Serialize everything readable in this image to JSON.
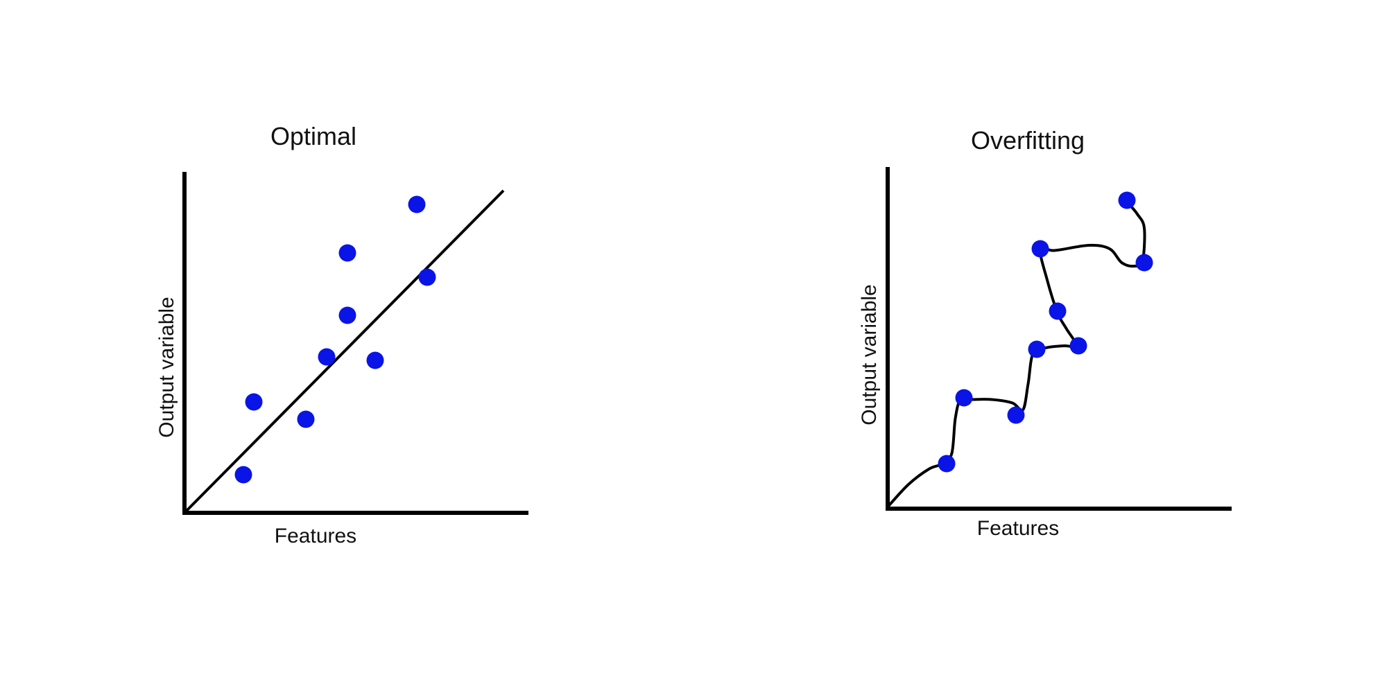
{
  "colors": {
    "point": "#0a14e6",
    "line": "#000000",
    "background": "#ffffff"
  },
  "panels": [
    {
      "id": "optimal",
      "title": "Optimal",
      "xlabel": "Features",
      "ylabel": "Output variable",
      "fit": "linear",
      "xlim": [
        0,
        10
      ],
      "ylim": [
        0,
        10
      ],
      "points": [
        {
          "x": 1.7,
          "y": 1.1
        },
        {
          "x": 2.0,
          "y": 3.2
        },
        {
          "x": 3.5,
          "y": 2.7
        },
        {
          "x": 4.1,
          "y": 4.5
        },
        {
          "x": 4.7,
          "y": 5.7
        },
        {
          "x": 4.7,
          "y": 7.5
        },
        {
          "x": 5.5,
          "y": 4.4
        },
        {
          "x": 6.7,
          "y": 8.9
        },
        {
          "x": 7.0,
          "y": 6.8
        }
      ],
      "fit_line": [
        {
          "x": 0,
          "y": 0
        },
        {
          "x": 9.2,
          "y": 9.3
        }
      ]
    },
    {
      "id": "overfitting",
      "title": "Overfitting",
      "xlabel": "Features",
      "ylabel": "Output variable",
      "fit": "wiggly",
      "xlim": [
        0,
        10
      ],
      "ylim": [
        0,
        10
      ],
      "points": [
        {
          "x": 1.7,
          "y": 1.3
        },
        {
          "x": 2.2,
          "y": 3.2
        },
        {
          "x": 3.7,
          "y": 2.7
        },
        {
          "x": 4.3,
          "y": 4.6
        },
        {
          "x": 5.5,
          "y": 4.7
        },
        {
          "x": 4.9,
          "y": 5.7
        },
        {
          "x": 4.4,
          "y": 7.5
        },
        {
          "x": 6.9,
          "y": 8.9
        },
        {
          "x": 7.4,
          "y": 7.1
        }
      ],
      "fit_curve": [
        {
          "x": 0.0,
          "y": 0.05
        },
        {
          "x": 0.6,
          "y": 0.7
        },
        {
          "x": 1.2,
          "y": 1.15
        },
        {
          "x": 1.6,
          "y": 1.3
        },
        {
          "x": 1.85,
          "y": 1.6
        },
        {
          "x": 1.95,
          "y": 2.6
        },
        {
          "x": 2.1,
          "y": 3.15
        },
        {
          "x": 2.4,
          "y": 3.15
        },
        {
          "x": 3.0,
          "y": 3.15
        },
        {
          "x": 3.6,
          "y": 3.05
        },
        {
          "x": 3.9,
          "y": 2.85
        },
        {
          "x": 4.05,
          "y": 3.6
        },
        {
          "x": 4.2,
          "y": 4.5
        },
        {
          "x": 4.6,
          "y": 4.65
        },
        {
          "x": 5.1,
          "y": 4.7
        },
        {
          "x": 5.45,
          "y": 4.7
        },
        {
          "x": 5.15,
          "y": 5.2
        },
        {
          "x": 4.9,
          "y": 5.65
        },
        {
          "x": 4.6,
          "y": 6.6
        },
        {
          "x": 4.4,
          "y": 7.5
        },
        {
          "x": 4.8,
          "y": 7.45
        },
        {
          "x": 5.8,
          "y": 7.6
        },
        {
          "x": 6.4,
          "y": 7.5
        },
        {
          "x": 6.75,
          "y": 7.1
        },
        {
          "x": 7.1,
          "y": 7.0
        },
        {
          "x": 7.35,
          "y": 7.15
        },
        {
          "x": 7.4,
          "y": 8.1
        },
        {
          "x": 7.2,
          "y": 8.5
        },
        {
          "x": 6.95,
          "y": 8.8
        }
      ]
    }
  ]
}
